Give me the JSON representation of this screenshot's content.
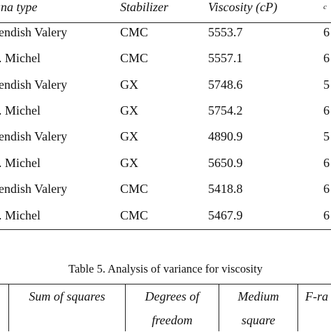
{
  "table4": {
    "headers": {
      "banana_type": "ana type",
      "stabilizer": "Stabilizer",
      "viscosity": "Viscosity (cP)",
      "clipped": "c"
    },
    "rows": [
      {
        "banana": "endish Valery",
        "stabilizer": "CMC",
        "viscosity": "5553.7",
        "clipped": "6"
      },
      {
        "banana": ". Michel",
        "stabilizer": "CMC",
        "viscosity": "5557.1",
        "clipped": "6"
      },
      {
        "banana": "endish Valery",
        "stabilizer": "GX",
        "viscosity": "5748.6",
        "clipped": "5"
      },
      {
        "banana": ". Michel",
        "stabilizer": "GX",
        "viscosity": "5754.2",
        "clipped": "6"
      },
      {
        "banana": "endish Valery",
        "stabilizer": "GX",
        "viscosity": "4890.9",
        "clipped": "5"
      },
      {
        "banana": ". Michel",
        "stabilizer": "GX",
        "viscosity": "5650.9",
        "clipped": "6"
      },
      {
        "banana": "endish Valery",
        "stabilizer": "CMC",
        "viscosity": "5418.8",
        "clipped": "6"
      },
      {
        "banana": ". Michel",
        "stabilizer": "CMC",
        "viscosity": "5467.9",
        "clipped": "6"
      }
    ]
  },
  "table5": {
    "caption": "Table 5. Analysis of variance for viscosity",
    "headers": {
      "sum_of_squares": "Sum of squares",
      "degrees_line1": "Degrees of",
      "degrees_line2": "freedom",
      "medium_line1": "Medium",
      "medium_line2": "square",
      "f_ratio": "F-ra"
    }
  }
}
